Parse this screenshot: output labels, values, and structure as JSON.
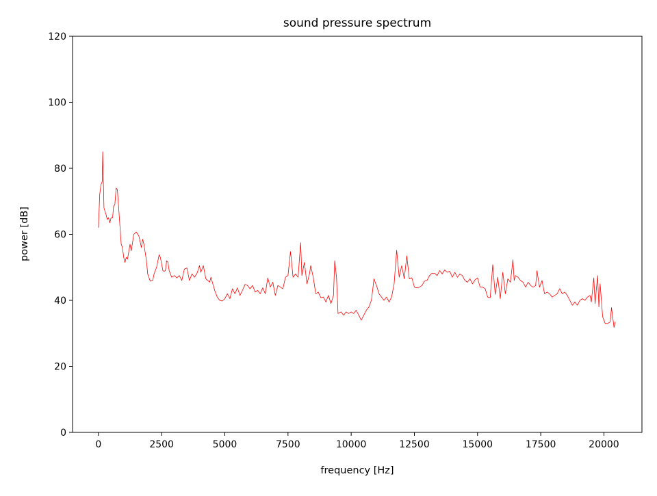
{
  "chart_data": {
    "type": "line",
    "title": "sound pressure spectrum",
    "xlabel": "frequency [Hz]",
    "ylabel": "power [dB]",
    "xlim": [
      -1024,
      21504
    ],
    "ylim": [
      0,
      120
    ],
    "xticks": [
      0,
      2500,
      5000,
      7500,
      10000,
      12500,
      15000,
      17500,
      20000
    ],
    "yticks": [
      0,
      20,
      40,
      60,
      80,
      100,
      120
    ],
    "grid": false,
    "line_color": "#ff0000",
    "series": [
      {
        "x": [
          0,
          50,
          100,
          150,
          170,
          220,
          300,
          350,
          400,
          450,
          500,
          560,
          600,
          650,
          700,
          750,
          800,
          900,
          950,
          1000,
          1050,
          1100,
          1150,
          1250,
          1300,
          1400,
          1500,
          1600,
          1700,
          1750,
          1800,
          1900,
          1950,
          2050,
          2150,
          2200,
          2300,
          2400,
          2450,
          2550,
          2600,
          2650,
          2700,
          2750,
          2800,
          2900,
          3000,
          3100,
          3200,
          3300,
          3400,
          3500,
          3600,
          3700,
          3800,
          3900,
          4000,
          4050,
          4150,
          4250,
          4400,
          4450,
          4600,
          4700,
          4800,
          4900,
          5000,
          5100,
          5200,
          5300,
          5400,
          5500,
          5600,
          5700,
          5800,
          5900,
          6000,
          6100,
          6200,
          6300,
          6400,
          6500,
          6600,
          6700,
          6800,
          6900,
          7000,
          7100,
          7200,
          7300,
          7400,
          7500,
          7600,
          7700,
          7800,
          7900,
          8000,
          8050,
          8150,
          8250,
          8350,
          8400,
          8500,
          8600,
          8700,
          8800,
          8900,
          9000,
          9100,
          9200,
          9300,
          9350,
          9420,
          9480,
          9600,
          9700,
          9800,
          9900,
          10000,
          10100,
          10200,
          10300,
          10400,
          10500,
          10600,
          10700,
          10800,
          10850,
          10900,
          11000,
          11100,
          11200,
          11300,
          11400,
          11500,
          11600,
          11700,
          11800,
          11900,
          12000,
          12100,
          12200,
          12300,
          12400,
          12500,
          12600,
          12700,
          12800,
          12900,
          13000,
          13100,
          13200,
          13300,
          13400,
          13500,
          13600,
          13700,
          13800,
          13900,
          14000,
          14100,
          14200,
          14300,
          14400,
          14500,
          14600,
          14700,
          14800,
          14900,
          15000,
          15100,
          15200,
          15300,
          15400,
          15500,
          15600,
          15700,
          15800,
          15900,
          16000,
          16100,
          16200,
          16300,
          16400,
          16450,
          16500,
          16600,
          16700,
          16800,
          16900,
          17000,
          17100,
          17200,
          17300,
          17350,
          17450,
          17550,
          17650,
          17750,
          17850,
          17950,
          18050,
          18150,
          18250,
          18350,
          18450,
          18550,
          18650,
          18750,
          18850,
          18950,
          19050,
          19150,
          19250,
          19350,
          19450,
          19500,
          19600,
          19650,
          19750,
          19800,
          19850,
          19950,
          20050,
          20150,
          20250,
          20300,
          20400,
          20450
        ],
        "y": [
          62,
          72,
          75,
          76,
          85,
          68,
          66,
          64.5,
          65,
          63.5,
          65,
          65,
          68.5,
          69,
          74,
          73.5,
          68,
          57,
          56,
          53,
          51.5,
          53,
          52.5,
          57,
          55,
          60,
          60.7,
          59.5,
          56,
          58.5,
          57,
          52,
          48,
          45.8,
          46,
          48,
          50,
          53.8,
          53,
          49,
          48.8,
          49,
          52,
          51.5,
          49,
          47,
          47.5,
          46.8,
          47.5,
          46,
          49.5,
          49.8,
          46,
          48,
          47,
          48.2,
          50.5,
          48.5,
          50.5,
          46.5,
          45.5,
          47,
          43,
          41,
          40,
          39.8,
          40.5,
          42,
          40.5,
          43.5,
          42,
          43.8,
          41.5,
          43,
          44.8,
          44.5,
          43.5,
          44.5,
          42.5,
          43,
          42,
          43.8,
          42,
          46.8,
          44,
          45.5,
          41.5,
          44.5,
          44,
          43.5,
          47,
          47.5,
          54.8,
          47,
          48,
          47,
          57.5,
          47.5,
          51.5,
          45,
          48,
          50.5,
          47,
          42,
          42.5,
          40.8,
          41,
          39.5,
          41.5,
          39,
          41.5,
          52,
          47,
          36,
          36.5,
          35.5,
          36.5,
          36,
          36.5,
          36,
          37,
          35.5,
          34,
          35.5,
          37,
          38,
          40,
          43,
          46.5,
          44.5,
          42,
          41,
          40,
          41,
          39.5,
          41,
          45,
          55.2,
          47,
          50.5,
          46.5,
          53.5,
          46.5,
          46.8,
          44,
          43.8,
          44,
          44.5,
          45.8,
          46,
          47.5,
          48.2,
          48.2,
          47.5,
          49,
          48,
          49.2,
          48.5,
          48.8,
          47,
          48.5,
          47,
          48,
          47.5,
          46,
          45.5,
          46.5,
          45,
          46.2,
          46.8,
          44,
          44,
          43.5,
          41,
          40.8,
          50.8,
          41.8,
          47,
          40.5,
          48.5,
          42,
          46.5,
          45.5,
          52.3,
          46,
          47.5,
          47,
          46,
          45.5,
          44,
          45.5,
          44.5,
          44,
          44.5,
          49,
          44,
          46,
          42,
          42.5,
          42,
          41,
          41.5,
          42,
          43.5,
          42,
          42.5,
          41.5,
          40,
          38.5,
          39.5,
          38.5,
          40,
          40.5,
          40,
          41,
          41.5,
          39.5,
          46.8,
          39,
          47.5,
          38,
          45,
          35,
          33,
          33,
          33.5,
          37.8,
          31.8,
          33.5
        ]
      }
    ]
  }
}
